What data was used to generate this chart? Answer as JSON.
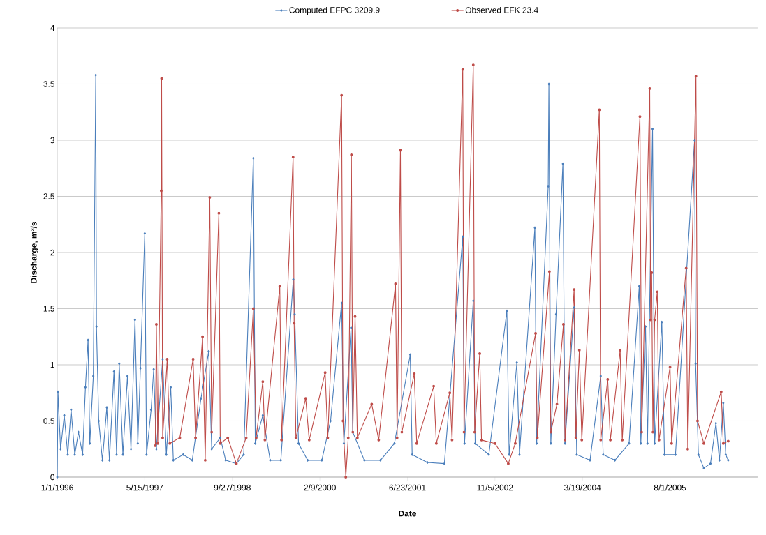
{
  "chart_data": {
    "type": "line",
    "xlabel": "Date",
    "ylabel": "Discharge, m³/s",
    "xlim": [
      "1996-01-01",
      "2006-12-14"
    ],
    "xticks": [
      {
        "value": "1996-01-01",
        "label": "1/1/1996"
      },
      {
        "value": "1997-05-15",
        "label": "5/15/1997"
      },
      {
        "value": "1998-09-27",
        "label": "9/27/1998"
      },
      {
        "value": "2000-02-09",
        "label": "2/9/2000"
      },
      {
        "value": "2001-06-23",
        "label": "6/23/2001"
      },
      {
        "value": "2002-11-05",
        "label": "11/5/2002"
      },
      {
        "value": "2004-03-19",
        "label": "3/19/2004"
      },
      {
        "value": "2005-08-01",
        "label": "8/1/2005"
      }
    ],
    "ylim": [
      0,
      4
    ],
    "yticks": [
      0,
      0.5,
      1,
      1.5,
      2,
      2.5,
      3,
      3.5,
      4
    ],
    "grid": "y",
    "legend": "top",
    "line_style": "solid",
    "series": [
      {
        "name": "Computed EFPC 3209.9",
        "color": "#4a7ebb",
        "marker": "diamond",
        "x": [
          "1996-01-01",
          "1996-01-05",
          "1996-01-20",
          "1996-02-10",
          "1996-03-01",
          "1996-03-20",
          "1996-04-10",
          "1996-05-01",
          "1996-05-25",
          "1996-06-10",
          "1996-06-25",
          "1996-07-05",
          "1996-07-25",
          "1996-08-08",
          "1996-08-12",
          "1996-08-25",
          "1996-09-15",
          "1996-10-10",
          "1996-10-25",
          "1996-11-20",
          "1996-12-05",
          "1996-12-20",
          "1997-01-10",
          "1997-02-05",
          "1997-02-25",
          "1997-03-20",
          "1997-04-05",
          "1997-04-20",
          "1997-05-15",
          "1997-05-25",
          "1997-06-20",
          "1997-07-05",
          "1997-07-20",
          "1997-08-25",
          "1997-09-15",
          "1997-10-10",
          "1997-10-25",
          "1997-12-20",
          "1998-02-10",
          "1998-04-01",
          "1998-05-15",
          "1998-06-01",
          "1998-07-20",
          "1998-08-20",
          "1998-10-20",
          "1998-12-01",
          "1999-01-25",
          "1999-02-05",
          "1999-03-20",
          "1999-05-01",
          "1999-07-01",
          "1999-09-10",
          "1999-09-18",
          "1999-10-10",
          "1999-12-01",
          "2000-02-20",
          "2000-04-10",
          "2000-06-12",
          "2000-06-25",
          "2000-08-05",
          "2000-08-15",
          "2000-10-20",
          "2001-01-20",
          "2001-04-10",
          "2001-07-09",
          "2001-07-20",
          "2001-10-15",
          "2002-01-20",
          "2002-05-05",
          "2002-05-15",
          "2002-07-04",
          "2002-07-15",
          "2002-10-01",
          "2003-01-12",
          "2003-01-25",
          "2003-03-10",
          "2003-03-25",
          "2003-06-21",
          "2003-07-01",
          "2003-09-05",
          "2003-09-09",
          "2003-09-20",
          "2003-10-20",
          "2003-11-28",
          "2003-12-10",
          "2004-01-31",
          "2004-02-15",
          "2004-05-01",
          "2004-07-01",
          "2004-07-15",
          "2004-09-20",
          "2004-12-10",
          "2005-02-06",
          "2005-02-15",
          "2005-03-14",
          "2005-03-25",
          "2005-04-23",
          "2005-05-05",
          "2005-06-15",
          "2005-06-30",
          "2005-09-01",
          "2005-12-19",
          "2005-12-25",
          "2006-01-10",
          "2006-02-10",
          "2006-03-20",
          "2006-04-20",
          "2006-05-10",
          "2006-06-01",
          "2006-06-15",
          "2006-06-29"
        ],
        "values": [
          0.0,
          0.76,
          0.25,
          0.55,
          0.2,
          0.6,
          0.2,
          0.4,
          0.2,
          0.8,
          1.22,
          0.3,
          0.9,
          3.58,
          1.34,
          0.5,
          0.15,
          0.62,
          0.15,
          0.94,
          0.2,
          1.01,
          0.2,
          0.9,
          0.25,
          1.4,
          0.3,
          0.97,
          2.17,
          0.2,
          0.6,
          0.96,
          0.25,
          1.05,
          0.2,
          0.8,
          0.15,
          0.2,
          0.15,
          0.7,
          1.12,
          0.25,
          0.35,
          0.15,
          0.12,
          0.2,
          2.84,
          0.3,
          0.55,
          0.15,
          0.15,
          1.76,
          1.45,
          0.3,
          0.15,
          0.15,
          0.5,
          1.55,
          0.3,
          1.33,
          0.4,
          0.15,
          0.15,
          0.3,
          1.09,
          0.2,
          0.13,
          0.12,
          2.14,
          0.3,
          1.57,
          0.3,
          0.2,
          1.48,
          0.2,
          1.02,
          0.2,
          2.22,
          0.3,
          2.59,
          3.5,
          0.3,
          1.45,
          2.79,
          0.3,
          1.51,
          0.2,
          0.15,
          0.9,
          0.2,
          0.15,
          0.3,
          1.7,
          0.3,
          1.34,
          0.3,
          3.1,
          0.3,
          1.38,
          0.2,
          0.2,
          3.0,
          1.01,
          0.2,
          0.08,
          0.12,
          0.48,
          0.15,
          0.66,
          0.2,
          0.15
        ]
      },
      {
        "name": "Observed EFK 23.4",
        "color": "#be4b48",
        "marker": "circle",
        "x": [
          "1997-07-14",
          "1997-07-20",
          "1997-07-28",
          "1997-08-17",
          "1997-08-19",
          "1997-08-25",
          "1997-09-20",
          "1997-10-05",
          "1997-12-01",
          "1998-02-15",
          "1998-03-01",
          "1998-04-10",
          "1998-04-25",
          "1998-05-21",
          "1998-06-01",
          "1998-07-12",
          "1998-07-20",
          "1998-09-01",
          "1998-10-20",
          "1998-12-15",
          "1999-01-25",
          "1999-02-10",
          "1999-03-20",
          "1999-04-01",
          "1999-06-25",
          "1999-07-05",
          "1999-09-09",
          "1999-09-15",
          "1999-09-25",
          "1999-11-20",
          "1999-12-10",
          "2000-03-10",
          "2000-03-25",
          "2000-06-12",
          "2000-06-20",
          "2000-07-06",
          "2000-07-20",
          "2000-08-07",
          "2000-08-15",
          "2000-08-28",
          "2000-09-10",
          "2000-12-01",
          "2001-01-10",
          "2001-04-16",
          "2001-04-25",
          "2001-05-14",
          "2001-05-22",
          "2001-08-01",
          "2001-08-15",
          "2001-11-20",
          "2001-12-05",
          "2002-02-20",
          "2002-03-05",
          "2002-05-05",
          "2002-05-12",
          "2002-07-04",
          "2002-07-12",
          "2002-08-10",
          "2002-08-20",
          "2002-11-05",
          "2003-01-20",
          "2003-03-01",
          "2003-06-25",
          "2003-07-05",
          "2003-09-12",
          "2003-09-20",
          "2003-10-25",
          "2003-12-01",
          "2003-12-10",
          "2004-01-31",
          "2004-02-10",
          "2004-03-01",
          "2004-03-15",
          "2004-06-23",
          "2004-07-01",
          "2004-08-10",
          "2004-08-25",
          "2004-10-20",
          "2004-11-01",
          "2005-02-10",
          "2005-02-20",
          "2005-04-07",
          "2005-04-12",
          "2005-04-18",
          "2005-04-25",
          "2005-05-05",
          "2005-05-20",
          "2005-05-30",
          "2005-08-01",
          "2005-08-10",
          "2005-11-01",
          "2005-11-10",
          "2005-12-27",
          "2006-01-05",
          "2006-02-10",
          "2006-05-20",
          "2006-06-01",
          "2006-06-29"
        ],
        "values": [
          0.28,
          1.36,
          0.3,
          2.55,
          3.55,
          0.35,
          1.05,
          0.3,
          0.35,
          1.05,
          0.35,
          1.25,
          0.15,
          2.49,
          0.4,
          2.35,
          0.3,
          0.35,
          0.12,
          0.35,
          1.5,
          0.35,
          0.85,
          0.33,
          1.7,
          0.33,
          2.85,
          1.37,
          0.35,
          0.7,
          0.33,
          0.93,
          0.35,
          3.4,
          0.5,
          0.0,
          0.35,
          2.87,
          0.4,
          1.43,
          0.35,
          0.65,
          0.33,
          1.72,
          0.35,
          2.91,
          0.4,
          0.92,
          0.3,
          0.81,
          0.3,
          0.75,
          0.33,
          3.63,
          0.4,
          3.67,
          0.4,
          1.1,
          0.33,
          0.3,
          0.12,
          0.3,
          1.28,
          0.35,
          1.83,
          0.4,
          0.65,
          1.36,
          0.33,
          1.67,
          0.35,
          1.13,
          0.33,
          3.27,
          0.33,
          0.87,
          0.33,
          1.13,
          0.33,
          3.21,
          0.4,
          3.46,
          1.4,
          1.82,
          0.4,
          1.4,
          1.65,
          0.33,
          0.98,
          0.3,
          1.86,
          0.25,
          3.57,
          0.5,
          0.3,
          0.76,
          0.3,
          0.32
        ]
      }
    ]
  }
}
